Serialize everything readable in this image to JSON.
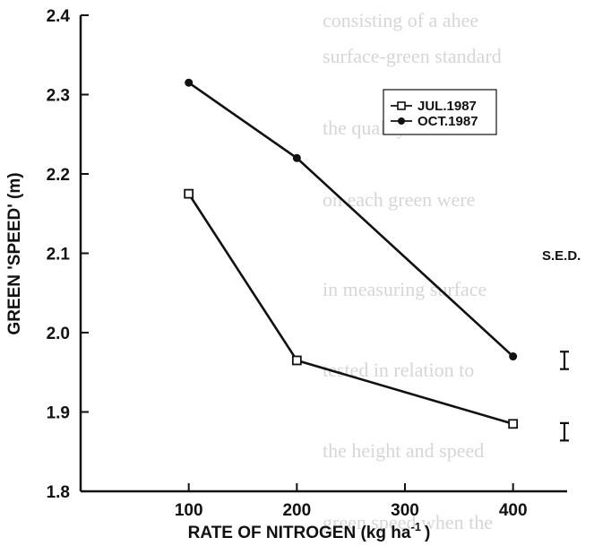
{
  "chart_data": {
    "type": "line",
    "title": "",
    "xlabel": "RATE OF NITROGEN (kg ha",
    "xlabel_superscript": "-1",
    "xlabel_suffix": ")",
    "ylabel": "GREEN 'SPEED' (m)",
    "xlim": [
      0,
      450
    ],
    "ylim": [
      1.8,
      2.4
    ],
    "xticks": [
      "100",
      "200",
      "300",
      "400"
    ],
    "xtick_values": [
      100,
      200,
      300,
      400
    ],
    "yticks": [
      "1.8",
      "1.9",
      "2.0",
      "2.1",
      "2.2",
      "2.3",
      "2.4"
    ],
    "ytick_values": [
      1.8,
      1.9,
      2.0,
      2.1,
      2.2,
      2.3,
      2.4
    ],
    "grid": false,
    "legend_position": "top-right",
    "x": [
      100,
      200,
      400
    ],
    "series": [
      {
        "name": "JUL.1987",
        "marker": "square",
        "values": [
          2.175,
          1.965,
          1.885
        ]
      },
      {
        "name": "OCT.1987",
        "marker": "diamond",
        "values": [
          2.315,
          2.22,
          1.97
        ]
      }
    ],
    "sed": {
      "label": "S.E.D.",
      "bars": [
        {
          "center": 1.965,
          "half_range": 0.011
        },
        {
          "center": 1.875,
          "half_range": 0.011
        }
      ]
    }
  }
}
